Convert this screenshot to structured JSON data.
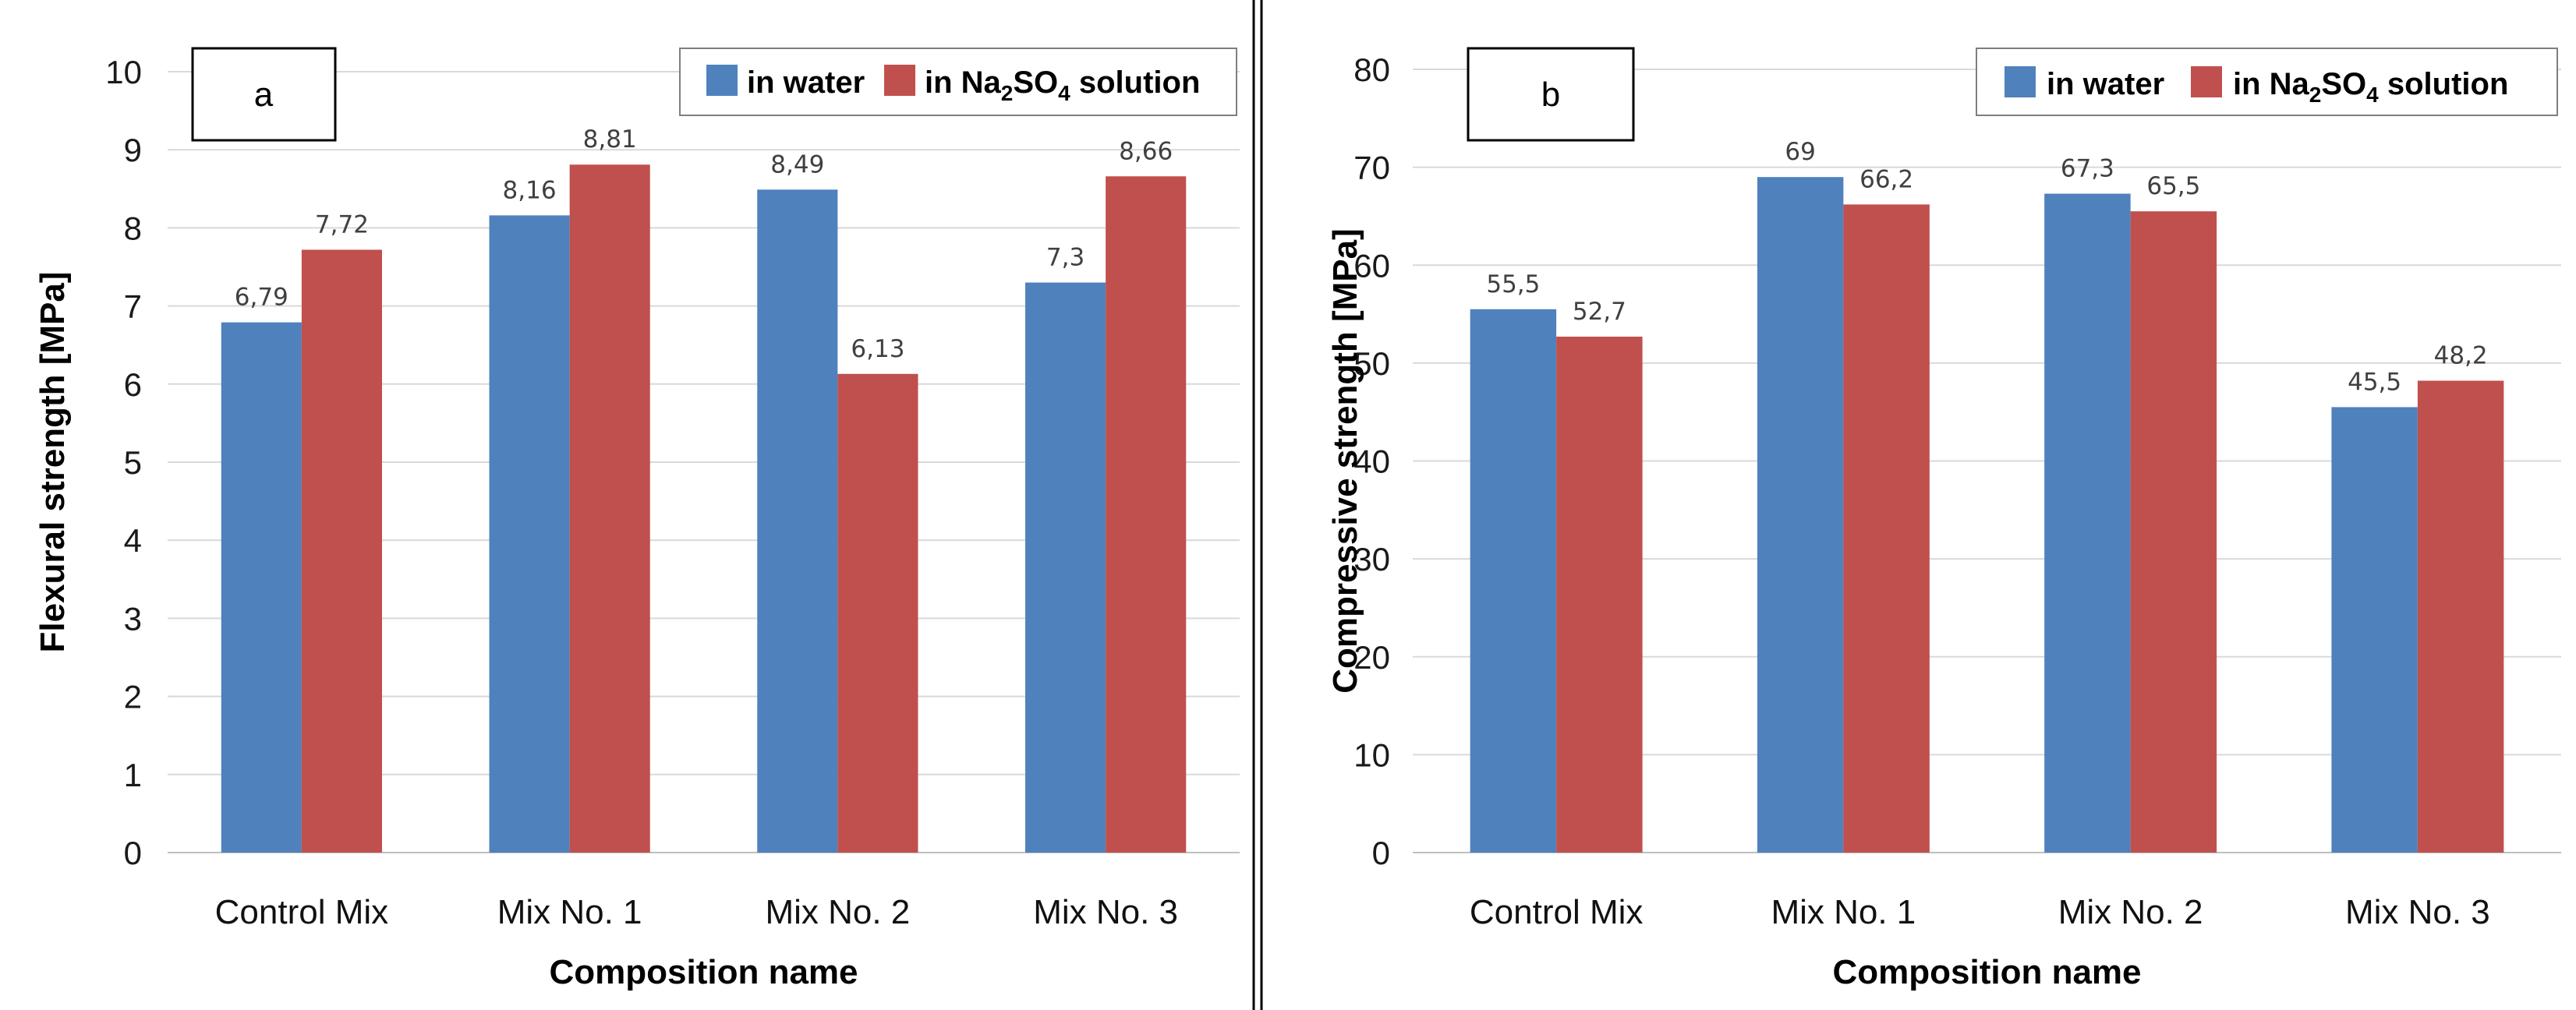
{
  "legend": {
    "in_water": "in water",
    "in_solution_prefix": "in Na",
    "in_solution_sub1": "2",
    "in_solution_mid": "SO",
    "in_solution_sub2": "4",
    "in_solution_suffix": " solution"
  },
  "colors": {
    "water": "#4f81bd",
    "solution": "#c0504d",
    "grid": "#d9d9d9",
    "axis": "#bfbfbf"
  },
  "chart_data": [
    {
      "panel": "a",
      "type": "bar",
      "categories": [
        "Control Mix",
        "Mix No. 1",
        "Mix No. 2",
        "Mix No. 3"
      ],
      "series": [
        {
          "name": "in water",
          "values": [
            6.79,
            8.16,
            8.49,
            7.3
          ],
          "labels": [
            "6,79",
            "8,16",
            "8,49",
            "7,3"
          ]
        },
        {
          "name": "in Na2SO4 solution",
          "values": [
            7.72,
            8.81,
            6.13,
            8.66
          ],
          "labels": [
            "7,72",
            "8,81",
            "6,13",
            "8,66"
          ]
        }
      ],
      "xlabel": "Composition name",
      "ylabel": "Flexural strength [MPa]",
      "ylim": [
        0,
        10
      ],
      "yticks": [
        "0",
        "1",
        "2",
        "3",
        "4",
        "5",
        "6",
        "7",
        "8",
        "9",
        "10"
      ],
      "grid": true,
      "legend_position": "top-right"
    },
    {
      "panel": "b",
      "type": "bar",
      "categories": [
        "Control Mix",
        "Mix No. 1",
        "Mix No. 2",
        "Mix No. 3"
      ],
      "series": [
        {
          "name": "in water",
          "values": [
            55.5,
            69,
            67.3,
            45.5
          ],
          "labels": [
            "55,5",
            "69",
            "67,3",
            "45,5"
          ]
        },
        {
          "name": "in Na2SO4 solution",
          "values": [
            52.7,
            66.2,
            65.5,
            48.2
          ],
          "labels": [
            "52,7",
            "66,2",
            "65,5",
            "48,2"
          ]
        }
      ],
      "xlabel": "Composition name",
      "ylabel": "Compressive strength  [MPa]",
      "ylim": [
        0,
        80
      ],
      "yticks": [
        "0",
        "10",
        "20",
        "30",
        "40",
        "50",
        "60",
        "70",
        "80"
      ],
      "grid": true,
      "legend_position": "top-right"
    }
  ]
}
